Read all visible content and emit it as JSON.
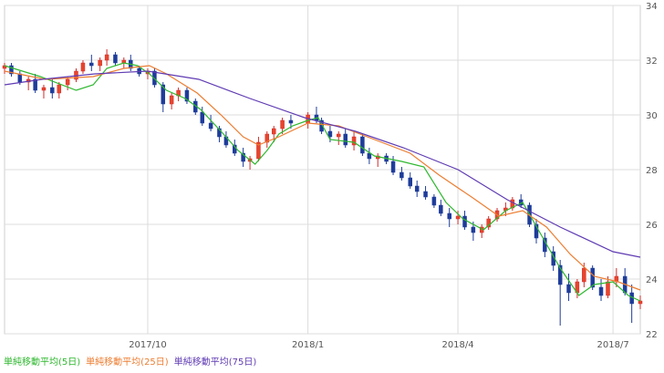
{
  "chart_data": {
    "type": "candlestick",
    "title": "",
    "xlabel": "",
    "ylabel": "",
    "ylim": [
      22,
      34
    ],
    "yticks": [
      22,
      24,
      26,
      28,
      30,
      32,
      34
    ],
    "grid": true,
    "x_ticks": [
      {
        "label": "2017/10",
        "at": "2017-10-02"
      },
      {
        "label": "2018/1",
        "at": "2018-01-04"
      },
      {
        "label": "2018/4",
        "at": "2018-04-02"
      },
      {
        "label": "2018/7",
        "at": "2018-07-02"
      }
    ],
    "date_range": [
      "2017-07-10",
      "2018-07-18"
    ],
    "legend_placement": "bottom-left",
    "series": [
      {
        "name": "単純移動平均(5日)",
        "color": "#2fb82f",
        "points": [
          [
            "2017-07-10",
            31.8
          ],
          [
            "2017-07-31",
            31.4
          ],
          [
            "2017-08-21",
            30.9
          ],
          [
            "2017-08-31",
            31.1
          ],
          [
            "2017-09-08",
            31.7
          ],
          [
            "2017-09-18",
            31.9
          ],
          [
            "2017-09-26",
            31.8
          ],
          [
            "2017-10-03",
            31.5
          ],
          [
            "2017-10-13",
            30.9
          ],
          [
            "2017-10-24",
            30.6
          ],
          [
            "2017-11-02",
            30.2
          ],
          [
            "2017-11-14",
            29.4
          ],
          [
            "2017-11-24",
            28.7
          ],
          [
            "2017-12-04",
            28.2
          ],
          [
            "2017-12-11",
            28.7
          ],
          [
            "2017-12-18",
            29.3
          ],
          [
            "2017-12-26",
            29.6
          ],
          [
            "2018-01-04",
            29.8
          ],
          [
            "2018-01-10",
            29.9
          ],
          [
            "2018-01-17",
            29.1
          ],
          [
            "2018-01-31",
            29.0
          ],
          [
            "2018-02-12",
            28.5
          ],
          [
            "2018-02-28",
            28.3
          ],
          [
            "2018-03-13",
            28.1
          ],
          [
            "2018-03-26",
            26.8
          ],
          [
            "2018-04-05",
            26.2
          ],
          [
            "2018-04-17",
            25.8
          ],
          [
            "2018-04-30",
            26.5
          ],
          [
            "2018-05-10",
            26.8
          ],
          [
            "2018-05-21",
            25.6
          ],
          [
            "2018-06-01",
            24.4
          ],
          [
            "2018-06-12",
            23.4
          ],
          [
            "2018-06-21",
            23.8
          ],
          [
            "2018-07-02",
            23.9
          ],
          [
            "2018-07-11",
            23.4
          ],
          [
            "2018-07-18",
            23.2
          ]
        ]
      },
      {
        "name": "単純移動平均(25日)",
        "color": "#ed7d31",
        "points": [
          [
            "2017-07-10",
            31.6
          ],
          [
            "2017-08-03",
            31.3
          ],
          [
            "2017-08-31",
            31.4
          ],
          [
            "2017-09-18",
            31.7
          ],
          [
            "2017-10-03",
            31.8
          ],
          [
            "2017-10-13",
            31.5
          ],
          [
            "2017-10-31",
            30.8
          ],
          [
            "2017-11-14",
            30.0
          ],
          [
            "2017-11-27",
            29.2
          ],
          [
            "2017-12-06",
            28.9
          ],
          [
            "2017-12-18",
            29.2
          ],
          [
            "2018-01-04",
            29.7
          ],
          [
            "2018-01-22",
            29.6
          ],
          [
            "2018-02-12",
            29.1
          ],
          [
            "2018-03-05",
            28.6
          ],
          [
            "2018-03-22",
            27.8
          ],
          [
            "2018-04-10",
            27.0
          ],
          [
            "2018-04-26",
            26.3
          ],
          [
            "2018-05-10",
            26.5
          ],
          [
            "2018-05-24",
            25.9
          ],
          [
            "2018-06-07",
            24.9
          ],
          [
            "2018-06-21",
            24.1
          ],
          [
            "2018-07-05",
            23.9
          ],
          [
            "2018-07-18",
            23.6
          ]
        ]
      },
      {
        "name": "単純移動平均(75日)",
        "color": "#5f3bb3",
        "points": [
          [
            "2017-07-10",
            31.1
          ],
          [
            "2017-08-01",
            31.3
          ],
          [
            "2017-09-01",
            31.5
          ],
          [
            "2017-10-02",
            31.6
          ],
          [
            "2017-11-01",
            31.3
          ],
          [
            "2017-12-01",
            30.6
          ],
          [
            "2018-01-02",
            29.9
          ],
          [
            "2018-02-01",
            29.4
          ],
          [
            "2018-03-01",
            28.8
          ],
          [
            "2018-04-02",
            28.0
          ],
          [
            "2018-05-01",
            26.9
          ],
          [
            "2018-06-01",
            25.9
          ],
          [
            "2018-07-02",
            25.0
          ],
          [
            "2018-07-18",
            24.8
          ]
        ]
      }
    ],
    "candles": [
      [
        "2017-07-10",
        31.7,
        31.9,
        31.5,
        31.8
      ],
      [
        "2017-07-14",
        31.8,
        31.9,
        31.4,
        31.5
      ],
      [
        "2017-07-19",
        31.5,
        31.6,
        31.1,
        31.2
      ],
      [
        "2017-07-24",
        31.2,
        31.4,
        30.9,
        31.3
      ],
      [
        "2017-07-28",
        31.3,
        31.5,
        30.8,
        30.9
      ],
      [
        "2017-08-02",
        30.9,
        31.1,
        30.6,
        31.0
      ],
      [
        "2017-08-07",
        31.0,
        31.3,
        30.6,
        30.8
      ],
      [
        "2017-08-11",
        30.8,
        31.2,
        30.6,
        31.1
      ],
      [
        "2017-08-16",
        31.1,
        31.4,
        30.9,
        31.3
      ],
      [
        "2017-08-21",
        31.3,
        31.7,
        31.2,
        31.6
      ],
      [
        "2017-08-25",
        31.6,
        32.0,
        31.5,
        31.9
      ],
      [
        "2017-08-30",
        31.9,
        32.2,
        31.6,
        31.8
      ],
      [
        "2017-09-04",
        31.8,
        32.1,
        31.6,
        32.0
      ],
      [
        "2017-09-08",
        32.0,
        32.4,
        31.8,
        32.2
      ],
      [
        "2017-09-13",
        32.2,
        32.3,
        31.8,
        31.9
      ],
      [
        "2017-09-18",
        31.9,
        32.1,
        31.7,
        32.0
      ],
      [
        "2017-09-22",
        32.0,
        32.2,
        31.6,
        31.7
      ],
      [
        "2017-09-27",
        31.7,
        31.8,
        31.4,
        31.5
      ],
      [
        "2017-10-02",
        31.5,
        31.7,
        31.3,
        31.6
      ],
      [
        "2017-10-06",
        31.6,
        31.7,
        31.0,
        31.1
      ],
      [
        "2017-10-11",
        31.1,
        31.2,
        30.1,
        30.4
      ],
      [
        "2017-10-16",
        30.4,
        30.8,
        30.2,
        30.7
      ],
      [
        "2017-10-20",
        30.7,
        31.0,
        30.5,
        30.9
      ],
      [
        "2017-10-25",
        30.9,
        31.0,
        30.4,
        30.5
      ],
      [
        "2017-10-30",
        30.5,
        30.6,
        30.0,
        30.1
      ],
      [
        "2017-11-03",
        30.1,
        30.3,
        29.6,
        29.7
      ],
      [
        "2017-11-08",
        29.7,
        30.0,
        29.4,
        29.5
      ],
      [
        "2017-11-13",
        29.5,
        29.6,
        29.0,
        29.2
      ],
      [
        "2017-11-17",
        29.2,
        29.4,
        28.8,
        28.9
      ],
      [
        "2017-11-22",
        28.9,
        29.1,
        28.5,
        28.6
      ],
      [
        "2017-11-27",
        28.6,
        28.8,
        28.1,
        28.3
      ],
      [
        "2017-12-01",
        28.3,
        28.5,
        28.0,
        28.4
      ],
      [
        "2017-12-06",
        28.4,
        29.2,
        28.3,
        29.0
      ],
      [
        "2017-12-11",
        29.0,
        29.4,
        28.8,
        29.3
      ],
      [
        "2017-12-15",
        29.3,
        29.6,
        29.0,
        29.5
      ],
      [
        "2017-12-20",
        29.5,
        29.9,
        29.3,
        29.8
      ],
      [
        "2017-12-25",
        29.8,
        30.0,
        29.5,
        29.7
      ],
      [
        "2018-01-04",
        29.7,
        30.1,
        29.5,
        30.0
      ],
      [
        "2018-01-09",
        30.0,
        30.3,
        29.7,
        29.8
      ],
      [
        "2018-01-12",
        29.8,
        29.9,
        29.3,
        29.4
      ],
      [
        "2018-01-17",
        29.4,
        29.6,
        29.0,
        29.2
      ],
      [
        "2018-01-22",
        29.2,
        29.4,
        28.9,
        29.3
      ],
      [
        "2018-01-26",
        29.3,
        29.5,
        28.8,
        28.9
      ],
      [
        "2018-01-31",
        28.9,
        29.4,
        28.7,
        29.2
      ],
      [
        "2018-02-05",
        29.2,
        29.3,
        28.5,
        28.6
      ],
      [
        "2018-02-09",
        28.6,
        28.8,
        28.2,
        28.4
      ],
      [
        "2018-02-14",
        28.4,
        28.6,
        28.1,
        28.5
      ],
      [
        "2018-02-19",
        28.5,
        28.6,
        28.2,
        28.3
      ],
      [
        "2018-02-23",
        28.3,
        28.5,
        27.8,
        27.9
      ],
      [
        "2018-02-28",
        27.9,
        28.1,
        27.6,
        27.7
      ],
      [
        "2018-03-05",
        27.7,
        27.9,
        27.3,
        27.4
      ],
      [
        "2018-03-09",
        27.4,
        27.6,
        27.0,
        27.2
      ],
      [
        "2018-03-14",
        27.2,
        27.4,
        26.9,
        27.0
      ],
      [
        "2018-03-19",
        27.0,
        27.1,
        26.6,
        26.7
      ],
      [
        "2018-03-23",
        26.7,
        26.9,
        26.3,
        26.4
      ],
      [
        "2018-03-28",
        26.4,
        26.6,
        25.9,
        26.2
      ],
      [
        "2018-04-02",
        26.2,
        26.5,
        26.0,
        26.3
      ],
      [
        "2018-04-06",
        26.3,
        26.5,
        25.8,
        25.9
      ],
      [
        "2018-04-11",
        25.9,
        26.1,
        25.4,
        25.7
      ],
      [
        "2018-04-16",
        25.7,
        26.0,
        25.5,
        25.9
      ],
      [
        "2018-04-20",
        25.9,
        26.3,
        25.8,
        26.2
      ],
      [
        "2018-04-25",
        26.2,
        26.6,
        26.1,
        26.5
      ],
      [
        "2018-04-30",
        26.5,
        26.8,
        26.3,
        26.6
      ],
      [
        "2018-05-04",
        26.6,
        27.0,
        26.5,
        26.9
      ],
      [
        "2018-05-09",
        26.9,
        27.1,
        26.6,
        26.7
      ],
      [
        "2018-05-14",
        26.7,
        26.8,
        25.9,
        26.0
      ],
      [
        "2018-05-18",
        26.0,
        26.2,
        25.3,
        25.5
      ],
      [
        "2018-05-23",
        25.5,
        25.7,
        24.8,
        25.0
      ],
      [
        "2018-05-28",
        25.0,
        25.2,
        24.3,
        24.5
      ],
      [
        "2018-06-01",
        24.5,
        24.7,
        22.3,
        23.8
      ],
      [
        "2018-06-06",
        23.8,
        24.2,
        23.2,
        23.5
      ],
      [
        "2018-06-11",
        23.5,
        24.0,
        23.3,
        23.9
      ],
      [
        "2018-06-15",
        23.9,
        24.6,
        23.7,
        24.4
      ],
      [
        "2018-06-20",
        24.4,
        24.5,
        23.6,
        23.7
      ],
      [
        "2018-06-25",
        23.7,
        24.0,
        23.2,
        23.4
      ],
      [
        "2018-06-29",
        23.4,
        24.1,
        23.3,
        23.9
      ],
      [
        "2018-07-04",
        23.9,
        24.4,
        23.7,
        24.1
      ],
      [
        "2018-07-09",
        24.1,
        24.4,
        23.4,
        23.5
      ],
      [
        "2018-07-13",
        23.5,
        23.8,
        22.4,
        23.1
      ],
      [
        "2018-07-18",
        23.1,
        23.4,
        22.9,
        23.2
      ]
    ]
  },
  "legend": [
    {
      "label": "単純移動平均(5日)",
      "color": "#2fb82f"
    },
    {
      "label": "単純移動平均(25日)",
      "color": "#ed7d31"
    },
    {
      "label": "単純移動平均(75日)",
      "color": "#5f3bb3"
    }
  ]
}
